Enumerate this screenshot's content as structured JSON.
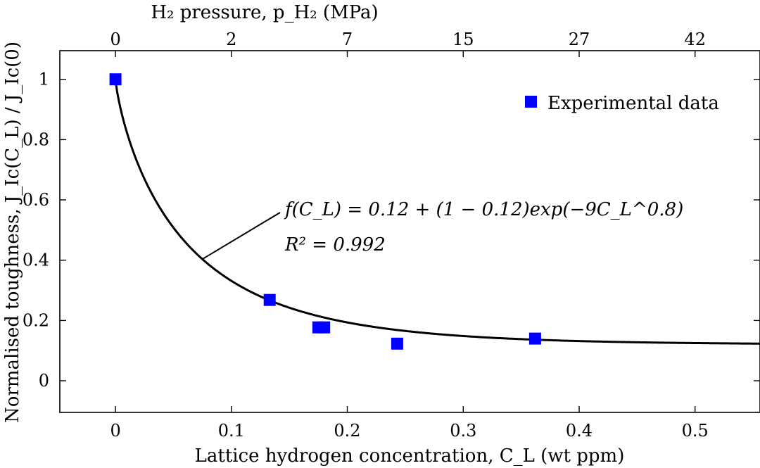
{
  "chart_data": {
    "type": "scatter",
    "title": "",
    "xlabel": "Lattice hydrogen concentration, C_L (wt ppm)",
    "ylabel": "Normalised toughness, J_Ic(C_L) / J_Ic(0)",
    "top_xlabel": "H₂ pressure, p_H₂ (MPa)",
    "xlim": [
      -0.048,
      0.556
    ],
    "ylim": [
      -0.105,
      1.095
    ],
    "xticks": [
      0,
      0.1,
      0.2,
      0.3,
      0.4,
      0.5
    ],
    "xtick_labels": [
      "0",
      "0.1",
      "0.2",
      "0.3",
      "0.4",
      "0.5"
    ],
    "yticks": [
      0,
      0.2,
      0.4,
      0.6,
      0.8,
      1
    ],
    "ytick_labels": [
      "0",
      "0.2",
      "0.4",
      "0.6",
      "0.8",
      "1"
    ],
    "top_ticks": [
      {
        "x": 0,
        "label": "0"
      },
      {
        "x": 0.1,
        "label": "2"
      },
      {
        "x": 0.2,
        "label": "7"
      },
      {
        "x": 0.3,
        "label": "15"
      },
      {
        "x": 0.4,
        "label": "27"
      },
      {
        "x": 0.5,
        "label": "42"
      }
    ],
    "series": [
      {
        "name": "Experimental data",
        "kind": "scatter",
        "marker": "square",
        "color": "#0000ff",
        "points": [
          {
            "x": 0.0,
            "y": 1.0
          },
          {
            "x": 0.133,
            "y": 0.268
          },
          {
            "x": 0.175,
            "y": 0.177
          },
          {
            "x": 0.18,
            "y": 0.177
          },
          {
            "x": 0.243,
            "y": 0.123
          },
          {
            "x": 0.362,
            "y": 0.14
          }
        ]
      },
      {
        "name": "fit",
        "kind": "line",
        "color": "#000000",
        "a": 0.12,
        "b": 9,
        "c": 0.8,
        "x_range": [
          0,
          0.556
        ]
      }
    ],
    "legend": {
      "position": "top-right",
      "label": "Experimental data"
    },
    "annotation": {
      "equation": "f(C_L) = 0.12 + (1 − 0.12)exp(−9C_L^0.8)",
      "r2": "R² = 0.992",
      "pointer_x": 0.075
    }
  }
}
